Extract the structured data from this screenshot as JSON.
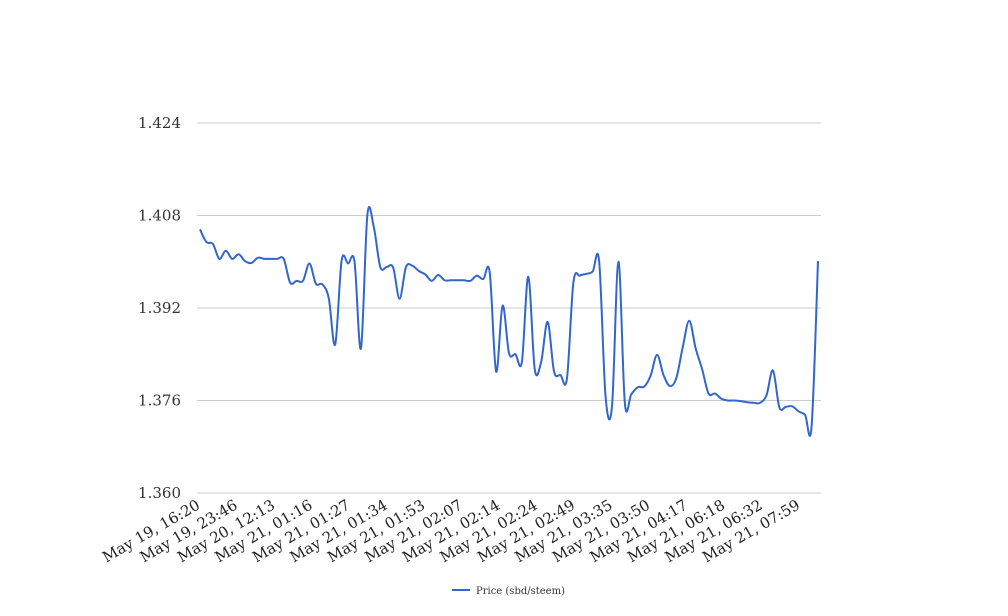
{
  "chart_data": {
    "type": "line",
    "title": "",
    "xlabel": "",
    "ylabel": "",
    "ylim": [
      1.36,
      1.424
    ],
    "y_ticks": [
      "1.360",
      "1.376",
      "1.392",
      "1.408",
      "1.424"
    ],
    "x_ticks": [
      "May 19, 16:20",
      "May 19, 23:46",
      "May 20, 12:13",
      "May 21, 01:16",
      "May 21, 01:27",
      "May 21, 01:34",
      "May 21, 01:53",
      "May 21, 02:07",
      "May 21, 02:14",
      "May 21, 02:24",
      "May 21, 02:49",
      "May 21, 03:35",
      "May 21, 03:50",
      "May 21, 04:17",
      "May 21, 06:18",
      "May 21, 06:32",
      "May 21, 07:59"
    ],
    "grid": true,
    "legend_position": "bottom",
    "series": [
      {
        "name": "Price (sbd/steem)",
        "color": "#3366cc",
        "values": [
          1.4056,
          1.4034,
          1.4031,
          1.4005,
          1.4019,
          1.4005,
          1.4013,
          1.4001,
          1.3998,
          1.4007,
          1.4005,
          1.4005,
          1.4005,
          1.4005,
          1.3964,
          1.3967,
          1.3967,
          1.3997,
          1.3962,
          1.3961,
          1.3937,
          1.3857,
          1.4002,
          1.3997,
          1.4,
          1.385,
          1.4081,
          1.406,
          1.3991,
          1.3991,
          1.399,
          1.3936,
          1.3991,
          1.3993,
          1.3984,
          1.3978,
          1.3967,
          1.3977,
          1.3968,
          1.3968,
          1.3968,
          1.3968,
          1.3967,
          1.3976,
          1.397,
          1.3982,
          1.381,
          1.3924,
          1.3842,
          1.384,
          1.3827,
          1.3974,
          1.3814,
          1.3827,
          1.3896,
          1.381,
          1.3804,
          1.3798,
          1.3964,
          1.3976,
          1.3979,
          1.3983,
          1.4001,
          1.3767,
          1.375,
          1.4,
          1.3755,
          1.3771,
          1.3783,
          1.3784,
          1.3803,
          1.3839,
          1.3804,
          1.3785,
          1.3799,
          1.3853,
          1.3898,
          1.385,
          1.3814,
          1.3772,
          1.3772,
          1.3763,
          1.376,
          1.376,
          1.3759,
          1.3757,
          1.3756,
          1.3756,
          1.3769,
          1.3812,
          1.3748,
          1.3749,
          1.375,
          1.3741,
          1.3735,
          1.3715,
          1.4001
        ]
      }
    ]
  }
}
